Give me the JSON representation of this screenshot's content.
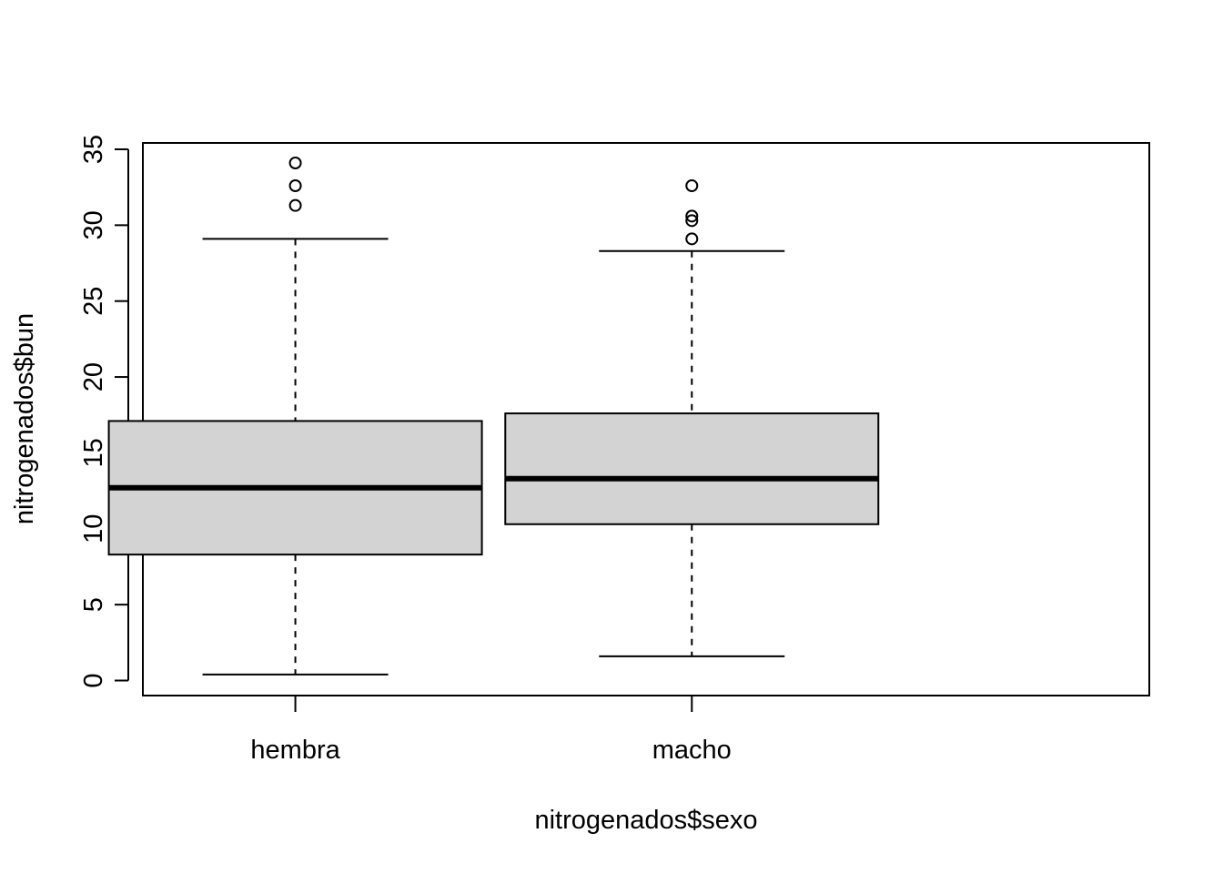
{
  "chart_data": {
    "type": "boxplot",
    "title": "",
    "xlabel": "nitrogenados$sexo",
    "ylabel": "nitrogenados$bun",
    "ylim": [
      -1,
      35.5
    ],
    "yticks": [
      "0",
      "5",
      "10",
      "15",
      "20",
      "25",
      "30",
      "35"
    ],
    "ytick_values": [
      0,
      5,
      10,
      15,
      20,
      25,
      30,
      35
    ],
    "grid": false,
    "box_fill": "#d3d3d3",
    "categories": [
      "hembra",
      "macho"
    ],
    "boxes": [
      {
        "category": "hembra",
        "whisker_low": 0.4,
        "q1": 8.3,
        "median": 12.7,
        "q3": 17.1,
        "whisker_high": 29.1,
        "outliers": [
          31.3,
          32.6,
          34.1
        ]
      },
      {
        "category": "macho",
        "whisker_low": 1.6,
        "q1": 10.3,
        "median": 13.3,
        "q3": 17.6,
        "whisker_high": 28.3,
        "outliers": [
          29.1,
          30.3,
          30.6,
          32.6
        ]
      }
    ]
  }
}
